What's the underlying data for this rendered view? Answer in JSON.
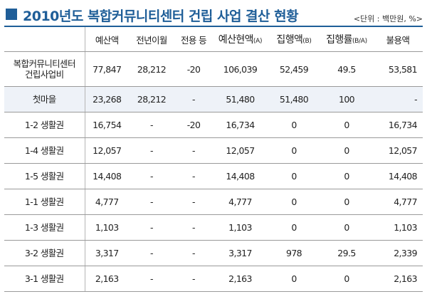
{
  "title": "2010년도 복합커뮤니티센터 건립 사업 결산 현황",
  "unit": "<단위 : 백만원, %>",
  "headers": [
    {
      "main": "",
      "sub": ""
    },
    {
      "main": "예산액",
      "sub": ""
    },
    {
      "main": "전년이월",
      "sub": ""
    },
    {
      "main": "전용 등",
      "sub": ""
    },
    {
      "main": "예산현액",
      "sub": "(A)"
    },
    {
      "main": "집행액",
      "sub": "(B)"
    },
    {
      "main": "집행률",
      "sub": "(B/A)"
    },
    {
      "main": "불용액",
      "sub": ""
    }
  ],
  "rows": [
    {
      "label": [
        "복합커뮤니티센터",
        "건립사업비"
      ],
      "cells": [
        "77,847",
        "28,212",
        "-20",
        "106,039",
        "52,459",
        "49.5",
        "53,581"
      ]
    },
    {
      "label": [
        "첫마을"
      ],
      "cells": [
        "23,268",
        "28,212",
        "-",
        "51,480",
        "51,480",
        "100",
        "-"
      ]
    },
    {
      "label": [
        "1-2 생활권"
      ],
      "cells": [
        "16,754",
        "-",
        "-20",
        "16,734",
        "0",
        "0",
        "16,734"
      ]
    },
    {
      "label": [
        "1-4 생활권"
      ],
      "cells": [
        "12,057",
        "-",
        "-",
        "12,057",
        "0",
        "0",
        "12,057"
      ]
    },
    {
      "label": [
        "1-5 생활권"
      ],
      "cells": [
        "14,408",
        "-",
        "-",
        "14,408",
        "0",
        "0",
        "14,408"
      ]
    },
    {
      "label": [
        "1-1 생활권"
      ],
      "cells": [
        "4,777",
        "-",
        "-",
        "4,777",
        "0",
        "0",
        "4,777"
      ]
    },
    {
      "label": [
        "1-3 생활권"
      ],
      "cells": [
        "1,103",
        "-",
        "-",
        "1,103",
        "0",
        "0",
        "1,103"
      ]
    },
    {
      "label": [
        "3-2 생활권"
      ],
      "cells": [
        "3,317",
        "-",
        "-",
        "3,317",
        "978",
        "29.5",
        "2,339"
      ]
    },
    {
      "label": [
        "3-1 생활권"
      ],
      "cells": [
        "2,163",
        "-",
        "-",
        "2,163",
        "0",
        "0",
        "2,163"
      ]
    }
  ],
  "colors": {
    "accent": "#1f5e98",
    "row_shade": "#eef2f8",
    "rule": "#9a9a9a"
  }
}
